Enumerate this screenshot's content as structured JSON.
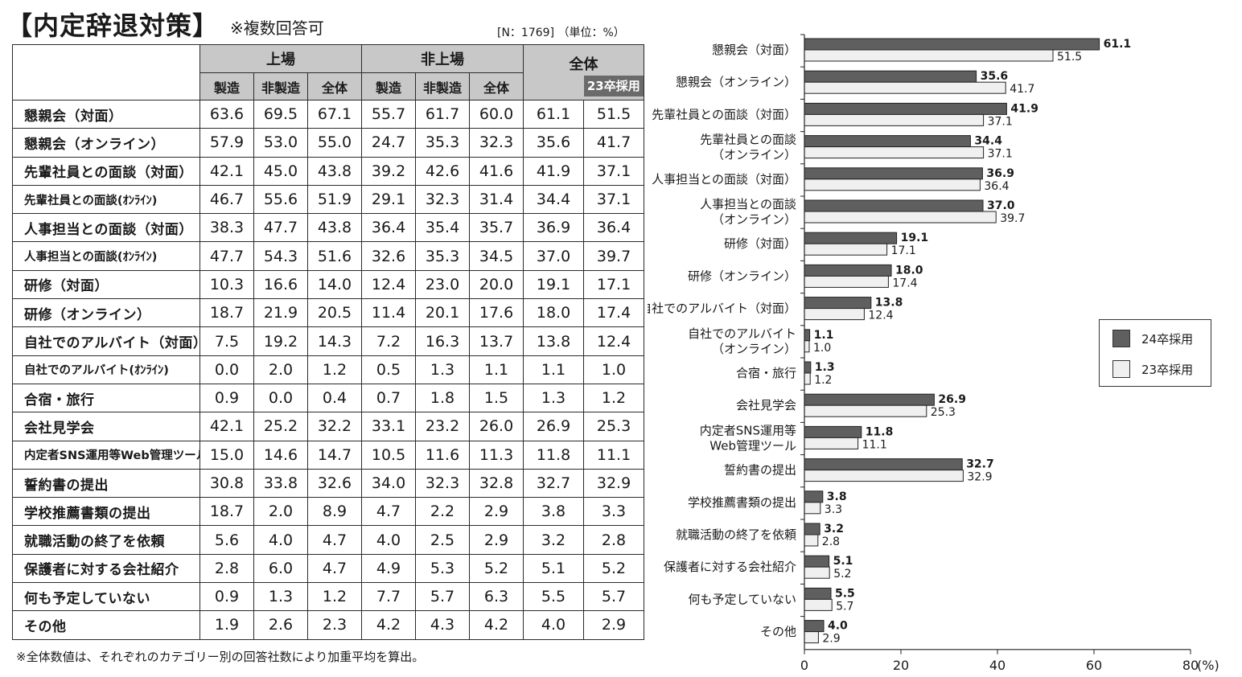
{
  "title": "【内定辞退対策】",
  "subtitle": "※複数回答可",
  "n_note": "[N：1769] （単位：%）",
  "footnote": "※全体数値は、それぞれのカテゴリー別の回答社数により加重平均を算出。",
  "table": {
    "group_listed": "上場",
    "group_unlisted": "非上場",
    "group_total": "全体",
    "sub_headers": [
      "製造",
      "非製造",
      "全体",
      "製造",
      "非製造",
      "全体"
    ],
    "col_23": "23卒採用",
    "rows": [
      {
        "label": "懇親会（対面）",
        "values": [
          "63.6",
          "69.5",
          "67.1",
          "55.7",
          "61.7",
          "60.0",
          "61.1",
          "51.5"
        ]
      },
      {
        "label": "懇親会（オンライン）",
        "values": [
          "57.9",
          "53.0",
          "55.0",
          "24.7",
          "35.3",
          "32.3",
          "35.6",
          "41.7"
        ]
      },
      {
        "label": "先輩社員との面談（対面）",
        "values": [
          "42.1",
          "45.0",
          "43.8",
          "39.2",
          "42.6",
          "41.6",
          "41.9",
          "37.1"
        ]
      },
      {
        "label": "先輩社員との面談(ｵﾝﾗｲﾝ)",
        "values": [
          "46.7",
          "55.6",
          "51.9",
          "29.1",
          "32.3",
          "31.4",
          "34.4",
          "37.1"
        ]
      },
      {
        "label": "人事担当との面談（対面）",
        "values": [
          "38.3",
          "47.7",
          "43.8",
          "36.4",
          "35.4",
          "35.7",
          "36.9",
          "36.4"
        ]
      },
      {
        "label": "人事担当との面談(ｵﾝﾗｲﾝ)",
        "values": [
          "47.7",
          "54.3",
          "51.6",
          "32.6",
          "35.3",
          "34.5",
          "37.0",
          "39.7"
        ]
      },
      {
        "label": "研修（対面）",
        "values": [
          "10.3",
          "16.6",
          "14.0",
          "12.4",
          "23.0",
          "20.0",
          "19.1",
          "17.1"
        ]
      },
      {
        "label": "研修（オンライン）",
        "values": [
          "18.7",
          "21.9",
          "20.5",
          "11.4",
          "20.1",
          "17.6",
          "18.0",
          "17.4"
        ]
      },
      {
        "label": "自社でのアルバイト（対面）",
        "values": [
          "7.5",
          "19.2",
          "14.3",
          "7.2",
          "16.3",
          "13.7",
          "13.8",
          "12.4"
        ]
      },
      {
        "label": "自社でのアルバイト(ｵﾝﾗｲﾝ)",
        "values": [
          "0.0",
          "2.0",
          "1.2",
          "0.5",
          "1.3",
          "1.1",
          "1.1",
          "1.0"
        ]
      },
      {
        "label": "合宿・旅行",
        "values": [
          "0.9",
          "0.0",
          "0.4",
          "0.7",
          "1.8",
          "1.5",
          "1.3",
          "1.2"
        ]
      },
      {
        "label": "会社見学会",
        "values": [
          "42.1",
          "25.2",
          "32.2",
          "33.1",
          "23.2",
          "26.0",
          "26.9",
          "25.3"
        ]
      },
      {
        "label": "内定者SNS運用等Web管理ツール",
        "values": [
          "15.0",
          "14.6",
          "14.7",
          "10.5",
          "11.6",
          "11.3",
          "11.8",
          "11.1"
        ]
      },
      {
        "label": "誓約書の提出",
        "values": [
          "30.8",
          "33.8",
          "32.6",
          "34.0",
          "32.3",
          "32.8",
          "32.7",
          "32.9"
        ]
      },
      {
        "label": "学校推薦書類の提出",
        "values": [
          "18.7",
          "2.0",
          "8.9",
          "4.7",
          "2.2",
          "2.9",
          "3.8",
          "3.3"
        ]
      },
      {
        "label": "就職活動の終了を依頼",
        "values": [
          "5.6",
          "4.0",
          "4.7",
          "4.0",
          "2.5",
          "2.9",
          "3.2",
          "2.8"
        ]
      },
      {
        "label": "保護者に対する会社紹介",
        "values": [
          "2.8",
          "6.0",
          "4.7",
          "4.9",
          "5.3",
          "5.2",
          "5.1",
          "5.2"
        ]
      },
      {
        "label": "何も予定していない",
        "values": [
          "0.9",
          "1.3",
          "1.2",
          "7.7",
          "5.7",
          "6.3",
          "5.5",
          "5.7"
        ]
      },
      {
        "label": "その他",
        "values": [
          "1.9",
          "2.6",
          "2.3",
          "4.2",
          "4.3",
          "4.2",
          "4.0",
          "2.9"
        ]
      }
    ]
  },
  "chart_data": {
    "type": "bar",
    "orientation": "horizontal",
    "categories": [
      [
        "懇親会（対面）"
      ],
      [
        "懇親会（オンライン）"
      ],
      [
        "先輩社員との面談（対面）"
      ],
      [
        "先輩社員との面談",
        "（オンライン）"
      ],
      [
        "人事担当との面談（対面）"
      ],
      [
        "人事担当との面談",
        "（オンライン）"
      ],
      [
        "研修（対面）"
      ],
      [
        "研修（オンライン）"
      ],
      [
        "自社でのアルバイト（対面）"
      ],
      [
        "自社でのアルバイト",
        "（オンライン）"
      ],
      [
        "合宿・旅行"
      ],
      [
        "会社見学会"
      ],
      [
        "内定者SNS運用等",
        "Web管理ツール"
      ],
      [
        "誓約書の提出"
      ],
      [
        "学校推薦書類の提出"
      ],
      [
        "就職活動の終了を依頼"
      ],
      [
        "保護者に対する会社紹介"
      ],
      [
        "何も予定していない"
      ],
      [
        "その他"
      ]
    ],
    "series": [
      {
        "name": "24卒採用",
        "color": "#5f5f5f",
        "values": [
          61.1,
          35.6,
          41.9,
          34.4,
          36.9,
          37.0,
          19.1,
          18.0,
          13.8,
          1.1,
          1.3,
          26.9,
          11.8,
          32.7,
          3.8,
          3.2,
          5.1,
          5.5,
          4.0
        ]
      },
      {
        "name": "23卒採用",
        "color": "#f0f0f0",
        "values": [
          51.5,
          41.7,
          37.1,
          37.1,
          36.4,
          39.7,
          17.1,
          17.4,
          12.4,
          1.0,
          1.2,
          25.3,
          11.1,
          32.9,
          3.3,
          2.8,
          5.2,
          5.7,
          2.9
        ]
      }
    ],
    "xlim": [
      0,
      80
    ],
    "xticks": [
      0,
      20,
      40,
      60,
      80
    ],
    "x_unit": "(%)",
    "legend_position": "right",
    "grid": false
  }
}
